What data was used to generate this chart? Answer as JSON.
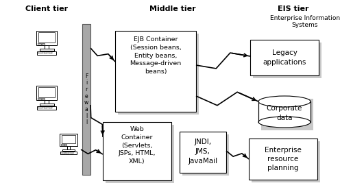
{
  "title_client": "Client tier",
  "title_middle": "Middle tier",
  "title_eis": "EIS tier",
  "fig_bg": "#ffffff",
  "shadow_color": "#c8c8c8",
  "firewall_color": "#a8a8a8",
  "ejb_text": "EJB Container\n(Session beans,\nEntity beans,\nMessage-driven\nbeans)",
  "web_text": "Web\nContainer\n(Servlets,\nJSPs, HTML,\nXML)",
  "jndi_text": "JNDI,\nJMS,\nJavaMail",
  "legacy_text": "Legacy\napplications",
  "corp_text": "Corporate\ndata",
  "erp_text": "Enterprise\nresource\nplanning",
  "eis_sub": "Enterprise Information\nSystems",
  "fw_label": "F\ni\nr\ne\nw\na\nl\nl"
}
